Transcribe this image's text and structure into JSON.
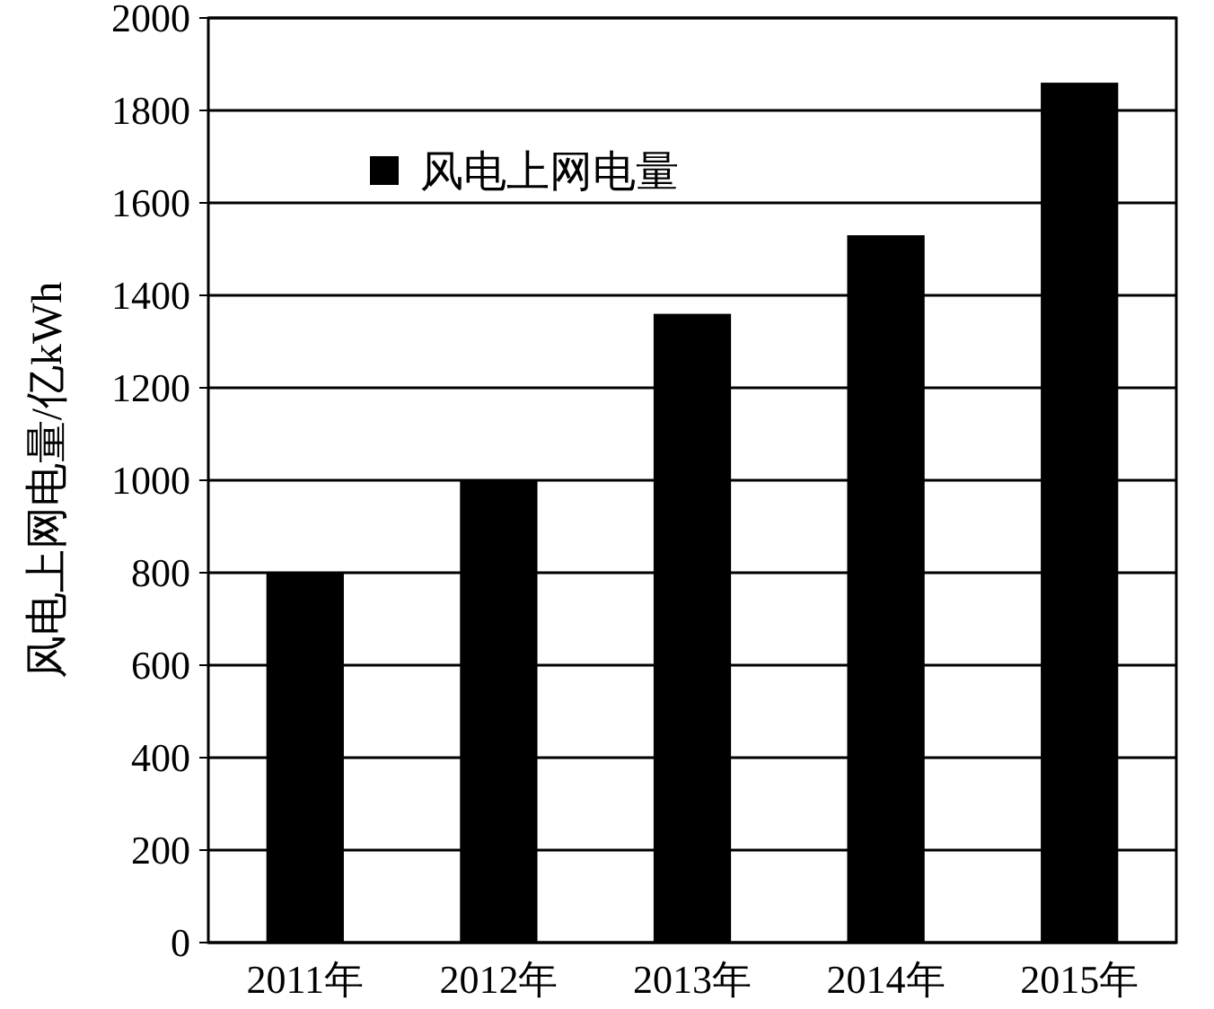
{
  "chart_data": {
    "type": "bar",
    "ylabel": "风电上网电量/亿kWh",
    "categories": [
      "2011年",
      "2012年",
      "2013年",
      "2014年",
      "2015年"
    ],
    "series": [
      {
        "name": "风电上网电量",
        "color": "#000000",
        "values": [
          800,
          1000,
          1360,
          1530,
          1860
        ]
      }
    ],
    "ylim": [
      0,
      2000
    ],
    "yticks": [
      0,
      200,
      400,
      600,
      800,
      1000,
      1200,
      1400,
      1600,
      1800,
      2000
    ],
    "grid": "y",
    "legend": "top left"
  }
}
